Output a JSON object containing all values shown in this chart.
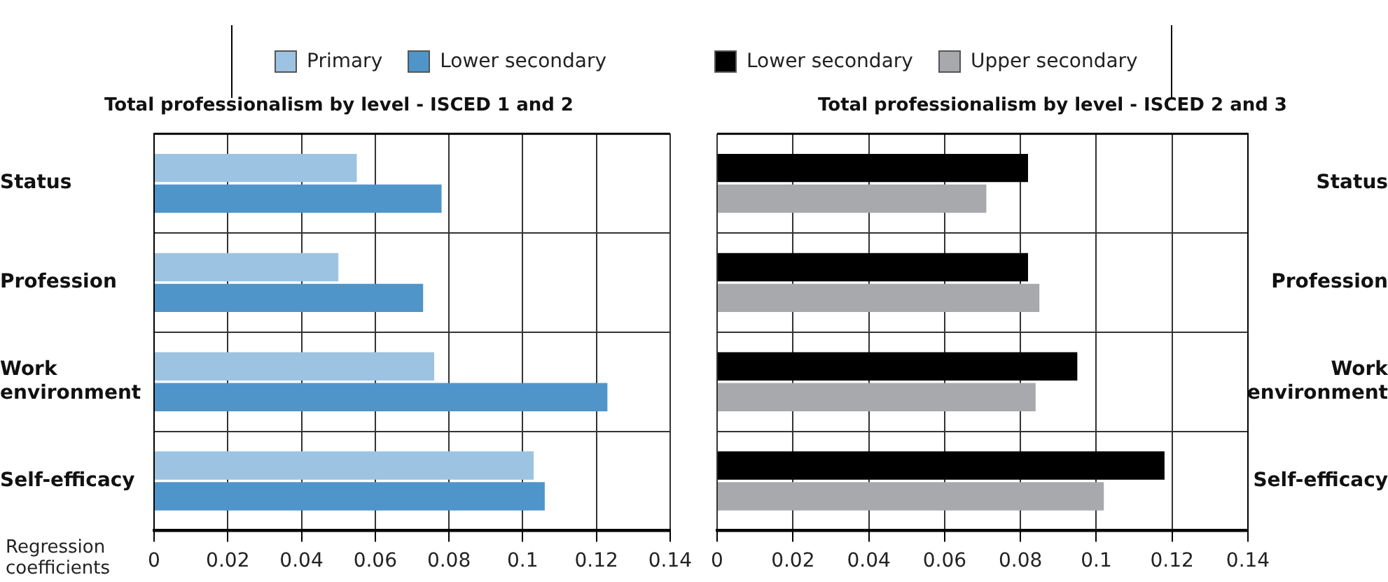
{
  "chart_data": [
    {
      "type": "bar",
      "orientation": "horizontal",
      "title": "Total professionalism by level - ISCED 1 and 2",
      "xlabel": "Regression coefficients",
      "categories": [
        "Status",
        "Profession",
        "Work environment",
        "Self-efficacy"
      ],
      "series": [
        {
          "name": "Primary",
          "color": "#9dc3e2",
          "values": [
            0.055,
            0.05,
            0.076,
            0.103
          ]
        },
        {
          "name": "Lower secondary",
          "color": "#4f95c9",
          "values": [
            0.078,
            0.073,
            0.123,
            0.106
          ]
        }
      ],
      "xlim": [
        0,
        0.14
      ],
      "xticks": [
        0,
        0.02,
        0.04,
        0.06,
        0.08,
        0.1,
        0.12,
        0.14
      ],
      "grid": true,
      "legend": "top"
    },
    {
      "type": "bar",
      "orientation": "horizontal",
      "title": "Total professionalism by level - ISCED 2 and 3",
      "categories": [
        "Status",
        "Profession",
        "Work environment",
        "Self-efficacy"
      ],
      "series": [
        {
          "name": "Lower secondary",
          "color": "#000000",
          "values": [
            0.082,
            0.082,
            0.095,
            0.118
          ]
        },
        {
          "name": "Upper secondary",
          "color": "#a7a9ac",
          "values": [
            0.071,
            0.085,
            0.084,
            0.102
          ]
        }
      ],
      "xlim": [
        0,
        0.14
      ],
      "xticks": [
        0,
        0.02,
        0.04,
        0.06,
        0.08,
        0.1,
        0.12,
        0.14
      ],
      "grid": true,
      "legend": "top"
    }
  ]
}
